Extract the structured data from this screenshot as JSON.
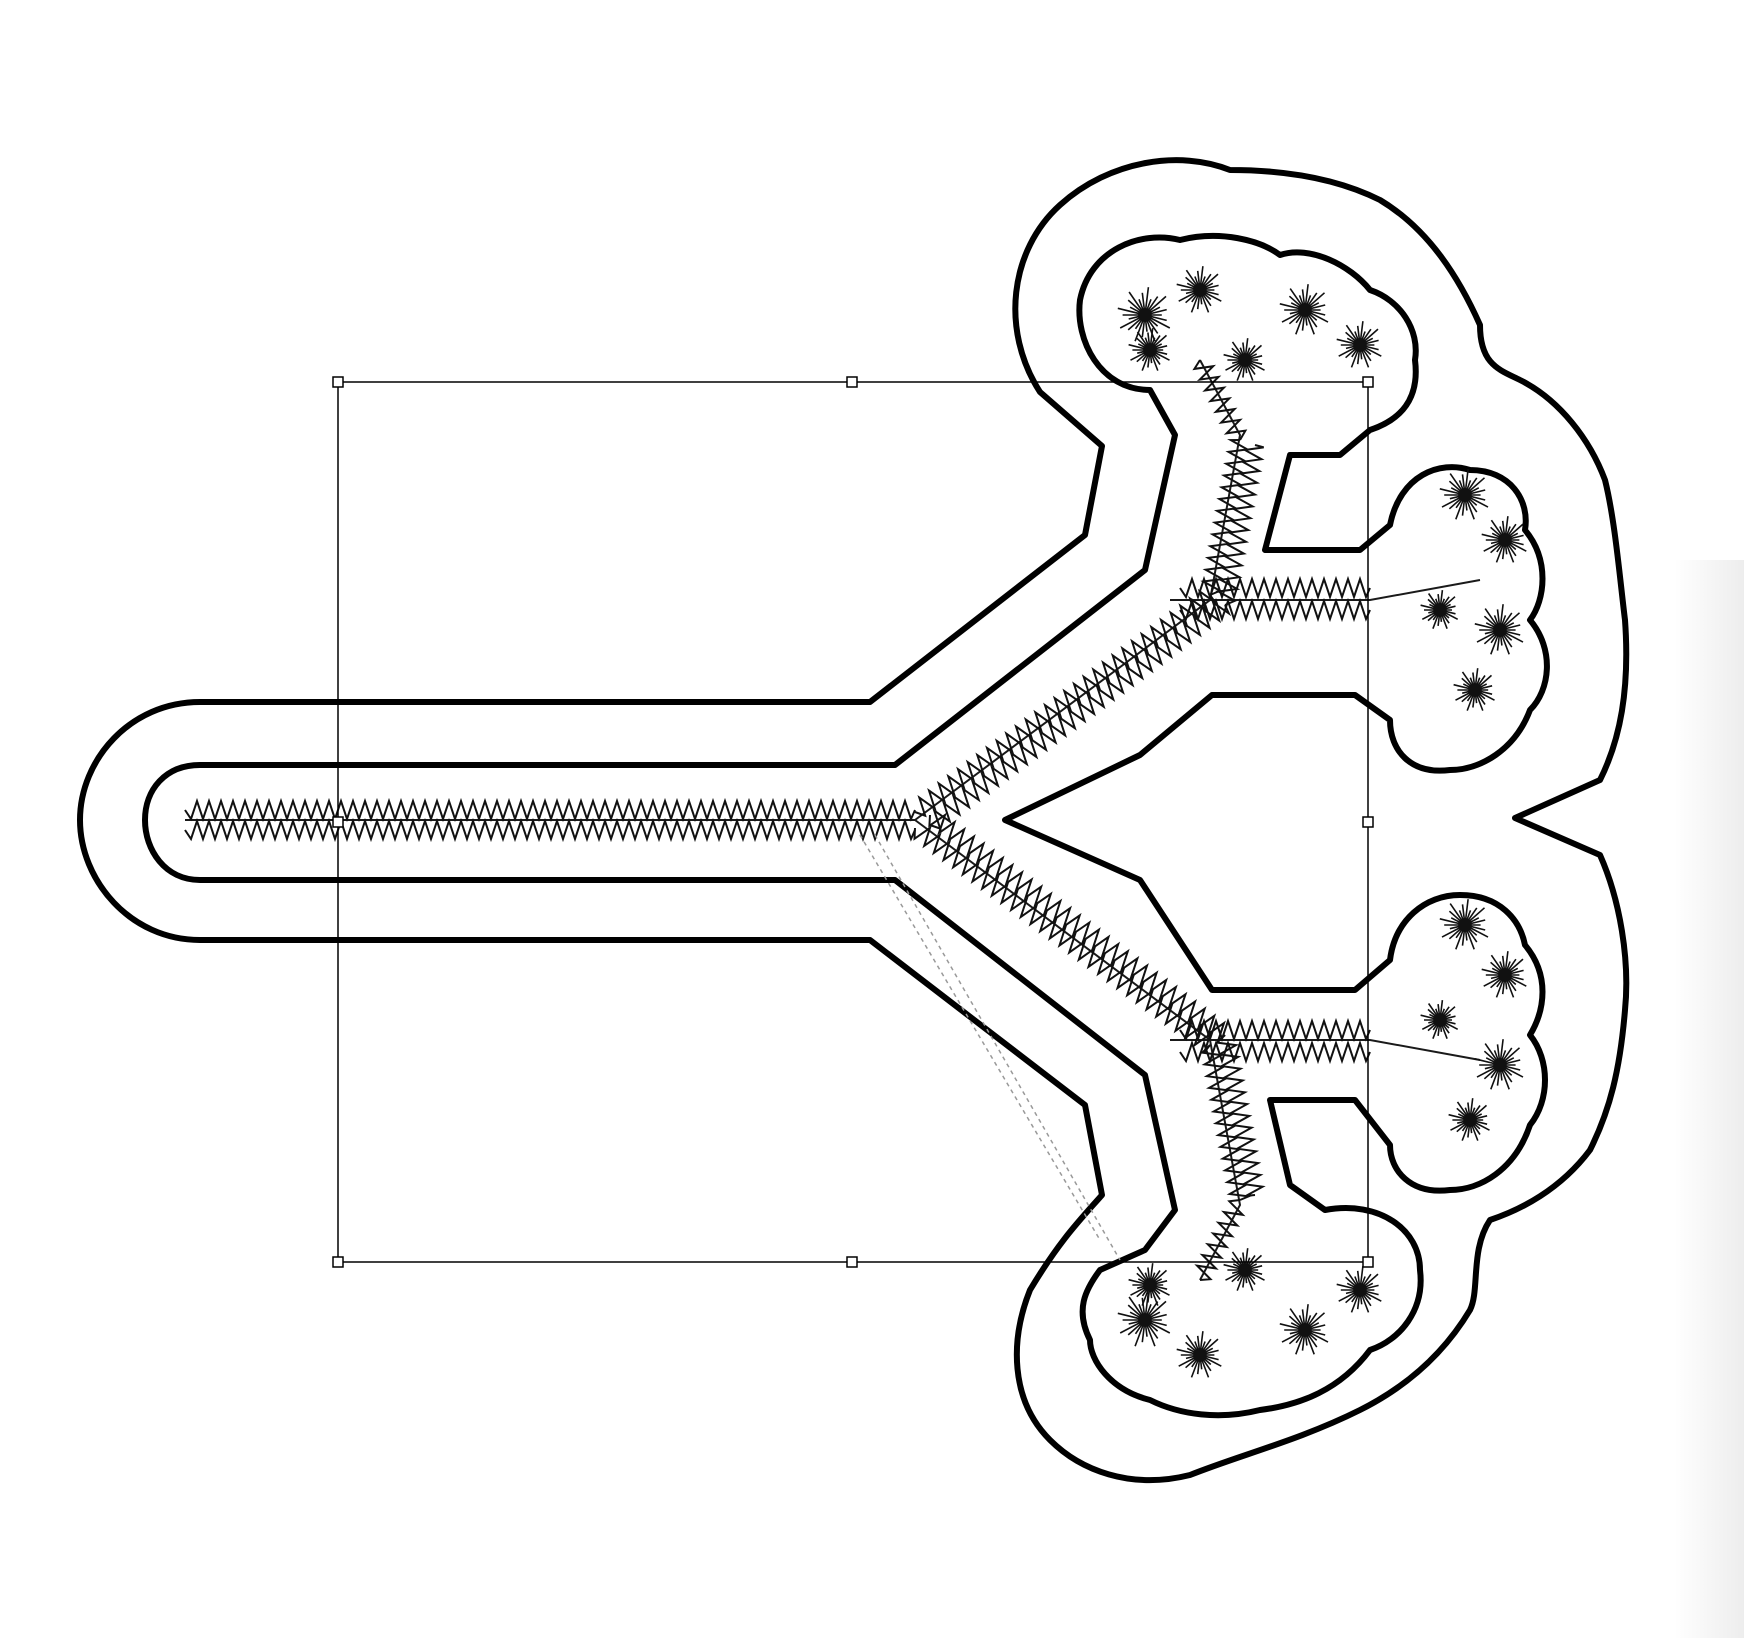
{
  "canvas": {
    "background": "#ffffff"
  },
  "artwork": {
    "shape": "y-tree-branch-applique",
    "outline_color": "#000000",
    "stitch_color": "#1a1a1a",
    "outline_layers": [
      "outer-cut-line",
      "inner-placement-line",
      "zigzag-satin-stitch"
    ]
  },
  "selection": {
    "stroke_color": "#000000",
    "handle_count": 8,
    "guide_color": "#999999"
  }
}
